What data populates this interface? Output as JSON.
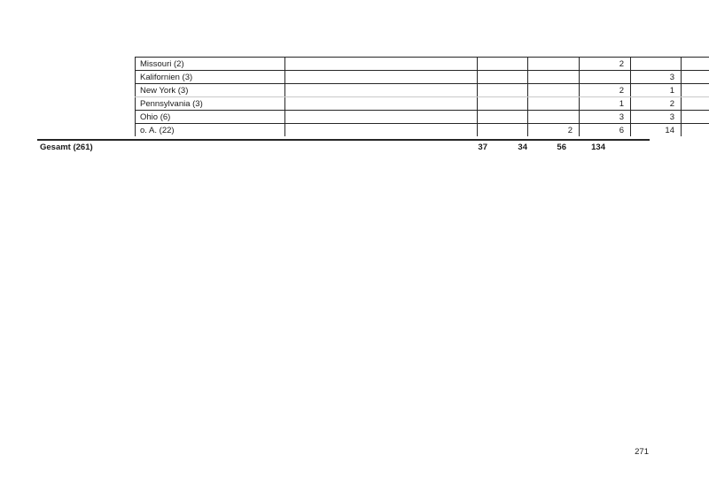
{
  "document": {
    "page_number": "271",
    "colors": {
      "background": "#ffffff",
      "text": "#1a1a1a",
      "border_dark": "#262626",
      "border_light": "#c9c9c9"
    },
    "table": {
      "rows": [
        {
          "label": "Missouri (2)",
          "cells": [
            "",
            "",
            "",
            "2",
            "",
            ""
          ]
        },
        {
          "label": "Kalifornien (3)",
          "cells": [
            "",
            "",
            "",
            "",
            "3",
            ""
          ]
        },
        {
          "label": "New York (3)",
          "cells": [
            "",
            "",
            "",
            "2",
            "1",
            ""
          ]
        },
        {
          "label": "Pennsylvania (3)",
          "cells": [
            "",
            "",
            "",
            "1",
            "2",
            ""
          ]
        },
        {
          "label": "Ohio (6)",
          "cells": [
            "",
            "",
            "",
            "3",
            "3",
            ""
          ]
        },
        {
          "label": "o. A. (22)",
          "cells": [
            "",
            "",
            "2",
            "6",
            "14",
            ""
          ]
        }
      ],
      "footer": {
        "label": "Gesamt (261)",
        "totals": [
          "37",
          "34",
          "56",
          "134"
        ]
      }
    }
  }
}
